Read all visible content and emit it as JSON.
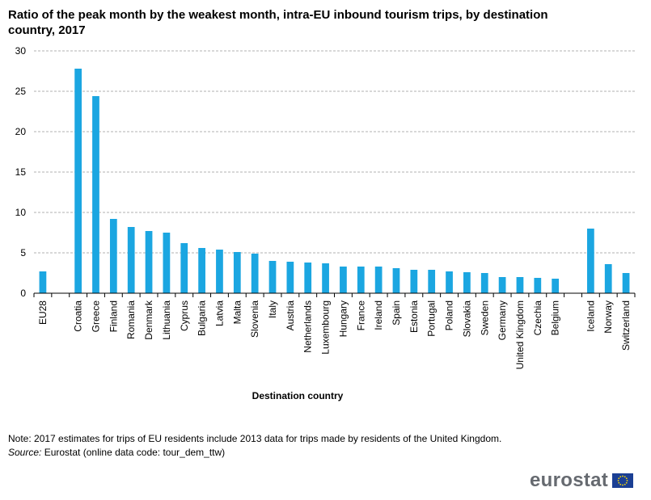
{
  "chart_data": {
    "type": "bar",
    "title": "Ratio of the peak month by the weakest month, intra-EU inbound tourism trips, by destination country, 2017",
    "xlabel": "Destination country",
    "ylabel": "",
    "ylim": [
      0,
      30
    ],
    "yticks": [
      0,
      5,
      10,
      15,
      20,
      25,
      30
    ],
    "grid": true,
    "bar_color": "#1ba6e1",
    "groups": [
      {
        "categories": [
          "EU28"
        ],
        "values": [
          2.7
        ]
      },
      {
        "categories": [
          "Croatia",
          "Greece",
          "Finland",
          "Romania",
          "Denmark",
          "Lithuania",
          "Cyprus",
          "Bulgaria",
          "Latvia",
          "Malta",
          "Slovenia",
          "Italy",
          "Austria",
          "Netherlands",
          "Luxembourg",
          "Hungary",
          "France",
          "Ireland",
          "Spain",
          "Estonia",
          "Portugal",
          "Poland",
          "Slovakia",
          "Sweden",
          "Germany",
          "United Kingdom",
          "Czechia",
          "Belgium"
        ],
        "values": [
          27.8,
          24.4,
          9.2,
          8.2,
          7.7,
          7.5,
          6.2,
          5.6,
          5.4,
          5.1,
          4.9,
          4.0,
          3.9,
          3.8,
          3.7,
          3.3,
          3.3,
          3.3,
          3.1,
          2.9,
          2.9,
          2.7,
          2.6,
          2.5,
          2.0,
          2.0,
          1.9,
          1.8
        ]
      },
      {
        "categories": [
          "Iceland",
          "Norway",
          "Switzerland"
        ],
        "values": [
          8.0,
          3.6,
          2.5
        ]
      }
    ]
  },
  "note": "Note: 2017 estimates for trips of EU residents include 2013 data for trips made by residents of the United Kingdom.",
  "source_label": "Source:",
  "source_text": "Eurostat (online data code: tour_dem_ttw)",
  "logo_text": "eurostat"
}
